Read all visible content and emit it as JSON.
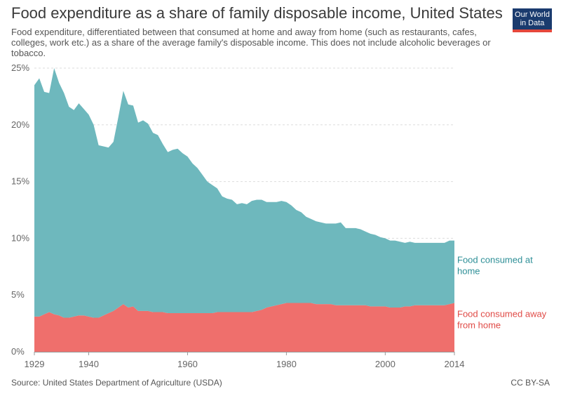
{
  "header": {
    "title": "Food expenditure as a share of family disposable income, United States",
    "subtitle": "Food expenditure, differentiated between that consumed at home and away from home (such as restaurants, cafes, colleges, work etc.) as a share of the average family's disposable income. This does not include alcoholic beverages or tobacco.",
    "logo_line1": "Our World",
    "logo_line2": "in Data"
  },
  "footer": {
    "source": "Source: United States Department of Agriculture (USDA)",
    "license": "CC BY-SA"
  },
  "colors": {
    "home": "#6eb8bd",
    "away": "#ef6f6c",
    "home_label": "#2e8f97",
    "away_label": "#e04b47",
    "grid": "#dddddd",
    "logo_bg": "#1a3b6e",
    "logo_accent": "#e5473c"
  },
  "chart_data": {
    "type": "area",
    "stacked": true,
    "xlim": [
      1929,
      2014
    ],
    "ylim": [
      0,
      25
    ],
    "x_ticks": [
      "1929",
      "1940",
      "1960",
      "1980",
      "2000",
      "2014"
    ],
    "y_ticks": [
      "0%",
      "5%",
      "10%",
      "15%",
      "20%",
      "25%"
    ],
    "grid": "horizontal dashed",
    "legend": "inline-right",
    "x": [
      1929,
      1930,
      1931,
      1932,
      1933,
      1934,
      1935,
      1936,
      1937,
      1938,
      1939,
      1940,
      1941,
      1942,
      1943,
      1944,
      1945,
      1946,
      1947,
      1948,
      1949,
      1950,
      1951,
      1952,
      1953,
      1954,
      1955,
      1956,
      1957,
      1958,
      1959,
      1960,
      1961,
      1962,
      1963,
      1964,
      1965,
      1966,
      1967,
      1968,
      1969,
      1970,
      1971,
      1972,
      1973,
      1974,
      1975,
      1976,
      1977,
      1978,
      1979,
      1980,
      1981,
      1982,
      1983,
      1984,
      1985,
      1986,
      1987,
      1988,
      1989,
      1990,
      1991,
      1992,
      1993,
      1994,
      1995,
      1996,
      1997,
      1998,
      1999,
      2000,
      2001,
      2002,
      2003,
      2004,
      2005,
      2006,
      2007,
      2008,
      2009,
      2010,
      2011,
      2012,
      2013,
      2014
    ],
    "series": [
      {
        "name": "Food consumed away from home",
        "values": [
          3.1,
          3.1,
          3.3,
          3.5,
          3.3,
          3.2,
          3.0,
          3.0,
          3.1,
          3.2,
          3.2,
          3.1,
          3.0,
          3.0,
          3.2,
          3.4,
          3.6,
          3.9,
          4.2,
          3.9,
          4.0,
          3.6,
          3.6,
          3.6,
          3.5,
          3.5,
          3.5,
          3.4,
          3.4,
          3.4,
          3.4,
          3.4,
          3.4,
          3.4,
          3.4,
          3.4,
          3.4,
          3.5,
          3.5,
          3.5,
          3.5,
          3.5,
          3.5,
          3.5,
          3.5,
          3.6,
          3.7,
          3.9,
          4.0,
          4.1,
          4.2,
          4.3,
          4.3,
          4.3,
          4.3,
          4.3,
          4.3,
          4.2,
          4.2,
          4.2,
          4.2,
          4.1,
          4.1,
          4.1,
          4.1,
          4.1,
          4.1,
          4.1,
          4.0,
          4.0,
          4.0,
          4.0,
          3.9,
          3.9,
          3.9,
          4.0,
          4.0,
          4.1,
          4.1,
          4.1,
          4.1,
          4.1,
          4.1,
          4.1,
          4.2,
          4.3
        ]
      },
      {
        "name": "Food consumed at home",
        "values": [
          20.4,
          21.0,
          19.6,
          19.3,
          21.7,
          20.5,
          19.8,
          18.6,
          18.2,
          18.7,
          18.2,
          17.8,
          17.0,
          15.2,
          14.9,
          14.6,
          14.9,
          16.8,
          18.8,
          17.9,
          17.7,
          16.6,
          16.8,
          16.5,
          15.8,
          15.6,
          14.8,
          14.2,
          14.4,
          14.5,
          14.1,
          13.8,
          13.2,
          12.8,
          12.2,
          11.6,
          11.3,
          10.9,
          10.2,
          10.0,
          9.9,
          9.5,
          9.6,
          9.5,
          9.8,
          9.8,
          9.7,
          9.3,
          9.2,
          9.1,
          9.1,
          8.9,
          8.6,
          8.2,
          8.0,
          7.6,
          7.4,
          7.3,
          7.2,
          7.1,
          7.1,
          7.2,
          7.3,
          6.8,
          6.8,
          6.8,
          6.7,
          6.5,
          6.4,
          6.3,
          6.1,
          6.0,
          5.9,
          5.9,
          5.8,
          5.6,
          5.7,
          5.5,
          5.5,
          5.5,
          5.5,
          5.5,
          5.5,
          5.5,
          5.6,
          5.5
        ]
      }
    ]
  }
}
